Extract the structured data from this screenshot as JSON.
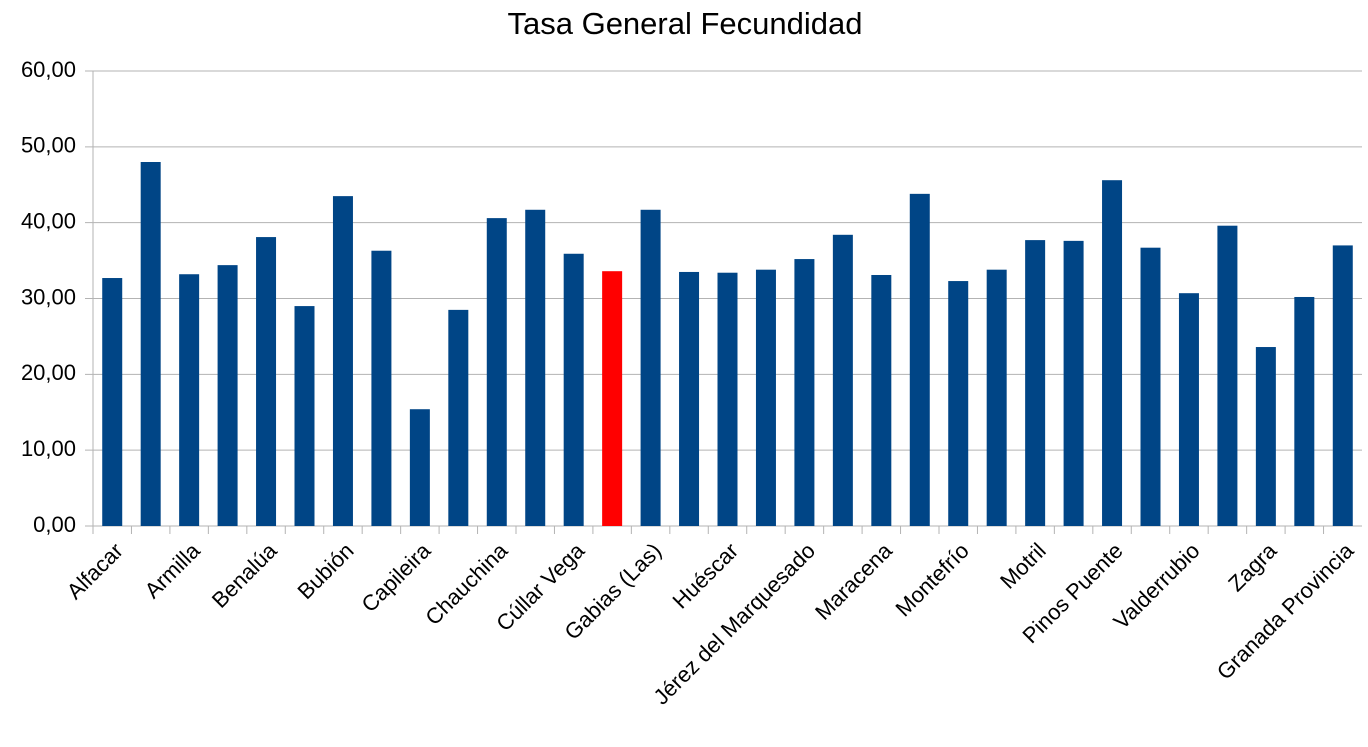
{
  "chart_data": {
    "type": "bar",
    "title": "Tasa General Fecundidad",
    "categories": [
      "Alfacar",
      null,
      "Armilla",
      null,
      "Benalúa",
      null,
      "Bubión",
      null,
      "Capileira",
      null,
      "Chauchina",
      null,
      "Cúllar Vega",
      null,
      "Gabias (Las)",
      null,
      "Huéscar",
      null,
      "Jérez del Marquesado",
      null,
      "Maracena",
      null,
      "Montefrío",
      null,
      "Motril",
      null,
      "Pinos Puente",
      null,
      "Valderrubio",
      null,
      "Zagra",
      null,
      "Granada Provincia"
    ],
    "values": [
      32.7,
      48.0,
      33.2,
      34.4,
      38.1,
      29.0,
      43.5,
      36.3,
      15.4,
      28.5,
      40.6,
      41.7,
      35.9,
      33.6,
      41.7,
      33.5,
      33.4,
      33.8,
      35.2,
      38.4,
      33.1,
      43.8,
      32.3,
      33.8,
      37.7,
      37.6,
      45.6,
      36.7,
      30.7,
      39.6,
      23.6,
      30.2,
      37.0
    ],
    "colors": [
      "#004586",
      "#004586",
      "#004586",
      "#004586",
      "#004586",
      "#004586",
      "#004586",
      "#004586",
      "#004586",
      "#004586",
      "#004586",
      "#004586",
      "#004586",
      "#ff0000",
      "#004586",
      "#004586",
      "#004586",
      "#004586",
      "#004586",
      "#004586",
      "#004586",
      "#004586",
      "#004586",
      "#004586",
      "#004586",
      "#004586",
      "#004586",
      "#004586",
      "#004586",
      "#004586",
      "#004586",
      "#004586",
      "#004586"
    ],
    "ylim": [
      0,
      60
    ],
    "yticks": [
      {
        "value": 0,
        "label": "0,00"
      },
      {
        "value": 10,
        "label": "10,00"
      },
      {
        "value": 20,
        "label": "20,00"
      },
      {
        "value": 30,
        "label": "30,00"
      },
      {
        "value": 40,
        "label": "40,00"
      },
      {
        "value": 50,
        "label": "50,00"
      },
      {
        "value": 60,
        "label": "60,00"
      }
    ],
    "grid": true
  }
}
